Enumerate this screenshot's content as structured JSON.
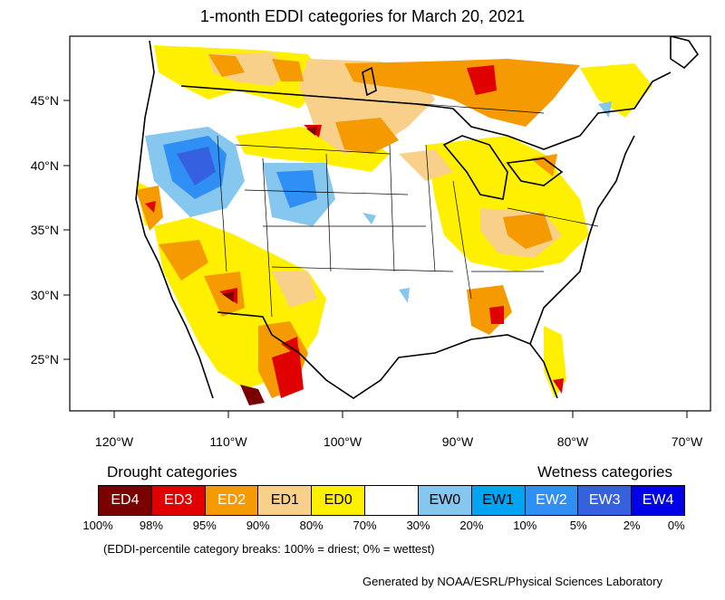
{
  "title": "1-month EDDI categories for March 20, 2021",
  "map": {
    "lat_labels": [
      "45°N",
      "40°N",
      "35°N",
      "30°N",
      "25°N"
    ],
    "lon_labels": [
      "120°W",
      "110°W",
      "100°W",
      "90°W",
      "80°W",
      "70°W"
    ],
    "category_colors": {
      "ED4": "#7a0000",
      "ED3": "#e00000",
      "ED2": "#f59a00",
      "ED1": "#f8d08a",
      "ED0": "#ffef00",
      "EW0": "#85c7ee",
      "EW1": "#00a4f0",
      "EW2": "#2f8ff5",
      "EW3": "#3560e0",
      "EW4": "#0000e8"
    }
  },
  "legend": {
    "drought_heading": "Drought categories",
    "wetness_heading": "Wetness categories",
    "categories": [
      {
        "label": "ED4",
        "color": "#7a0000",
        "text_color": "#ffffff"
      },
      {
        "label": "ED3",
        "color": "#e00000",
        "text_color": "#ffffff"
      },
      {
        "label": "ED2",
        "color": "#f59a00",
        "text_color": "#ffffff"
      },
      {
        "label": "ED1",
        "color": "#f8d08a",
        "text_color": "#000000"
      },
      {
        "label": "ED0",
        "color": "#ffef00",
        "text_color": "#000000"
      },
      {
        "label": "",
        "color": "#ffffff",
        "text_color": "#000000"
      },
      {
        "label": "EW0",
        "color": "#85c7ee",
        "text_color": "#000000"
      },
      {
        "label": "EW1",
        "color": "#00a4f0",
        "text_color": "#000000"
      },
      {
        "label": "EW2",
        "color": "#2f8ff5",
        "text_color": "#ffffff"
      },
      {
        "label": "EW3",
        "color": "#3560e0",
        "text_color": "#ffffff"
      },
      {
        "label": "EW4",
        "color": "#0000e8",
        "text_color": "#ffffff"
      }
    ],
    "breaks": [
      "100%",
      "98%",
      "95%",
      "90%",
      "80%",
      "70%",
      "30%",
      "20%",
      "10%",
      "5%",
      "2%",
      "0%"
    ],
    "note": "(EDDI-percentile category breaks: 100% = driest; 0% = wettest)"
  },
  "credit": "Generated by NOAA/ESRL/Physical Sciences Laboratory"
}
